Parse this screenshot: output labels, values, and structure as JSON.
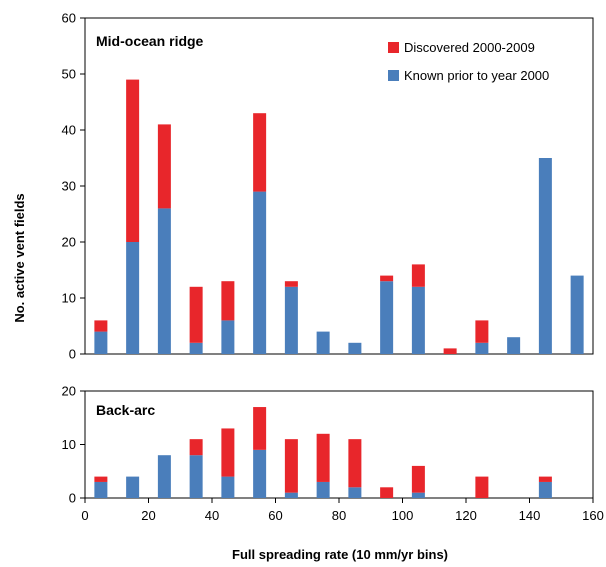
{
  "chart_data": [
    {
      "type": "bar",
      "stacked": true,
      "title": "Mid-ocean ridge",
      "x": [
        5,
        15,
        25,
        35,
        45,
        55,
        65,
        75,
        85,
        95,
        105,
        115,
        125,
        135,
        145,
        155
      ],
      "series": [
        {
          "name": "Known prior to year 2000",
          "color": "#4a7ebb",
          "values": [
            4,
            20,
            26,
            2,
            6,
            29,
            12,
            4,
            2,
            13,
            12,
            0,
            2,
            3,
            35,
            14
          ]
        },
        {
          "name": "Discovered 2000-2009",
          "color": "#e8262b",
          "values": [
            2,
            29,
            15,
            10,
            7,
            14,
            1,
            0,
            0,
            1,
            4,
            1,
            4,
            0,
            0,
            0
          ]
        }
      ],
      "xlim": [
        0,
        160
      ],
      "ylim": [
        0,
        60
      ],
      "yticks": [
        "0",
        "10",
        "20",
        "30",
        "40",
        "50",
        "60"
      ],
      "ylabel": "No. active vent fields",
      "legend": "top-right"
    },
    {
      "type": "bar",
      "stacked": true,
      "title": "Back-arc",
      "x": [
        5,
        15,
        25,
        35,
        45,
        55,
        65,
        75,
        85,
        95,
        105,
        115,
        125,
        135,
        145,
        155
      ],
      "series": [
        {
          "name": "Known prior to year 2000",
          "color": "#4a7ebb",
          "values": [
            3,
            4,
            8,
            8,
            4,
            9,
            1,
            3,
            2,
            0,
            1,
            0,
            0,
            0,
            3,
            0
          ]
        },
        {
          "name": "Discovered 2000-2009",
          "color": "#e8262b",
          "values": [
            1,
            0,
            0,
            3,
            9,
            8,
            10,
            9,
            9,
            2,
            5,
            0,
            4,
            0,
            1,
            0
          ]
        }
      ],
      "xlim": [
        0,
        160
      ],
      "ylim": [
        0,
        20
      ],
      "xticks": [
        "0",
        "20",
        "40",
        "60",
        "80",
        "100",
        "120",
        "140",
        "160"
      ],
      "yticks": [
        "0",
        "10",
        "20"
      ],
      "xlabel": "Full spreading rate (10 mm/yr bins)"
    }
  ]
}
